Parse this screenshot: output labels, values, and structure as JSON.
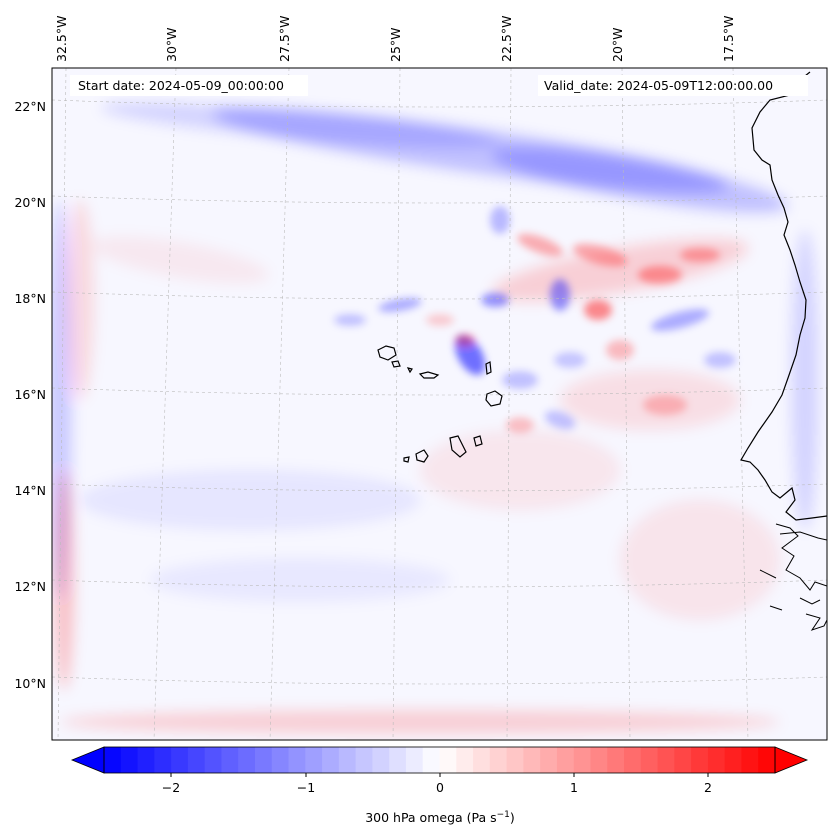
{
  "map": {
    "start_date_label": "Start date: 2024-05-09_00:00:00",
    "valid_date_label": "Valid_date: 2024-05-09T12:00:00.00",
    "lon_labels": [
      "32.5°W",
      "30°W",
      "27.5°W",
      "25°W",
      "22.5°W",
      "20°W",
      "17.5°W"
    ],
    "lat_labels": [
      "22°N",
      "20°N",
      "18°N",
      "16°N",
      "14°N",
      "12°N",
      "10°N"
    ]
  },
  "colorbar": {
    "ticks": [
      "−2",
      "−1",
      "0",
      "1",
      "2"
    ],
    "label_main": "300 hPa omega (Pa s",
    "label_exp": "−1",
    "label_close": ")",
    "colors": {
      "low": "#0000ff",
      "mid": "#ffffff",
      "high": "#ff0000"
    }
  }
}
